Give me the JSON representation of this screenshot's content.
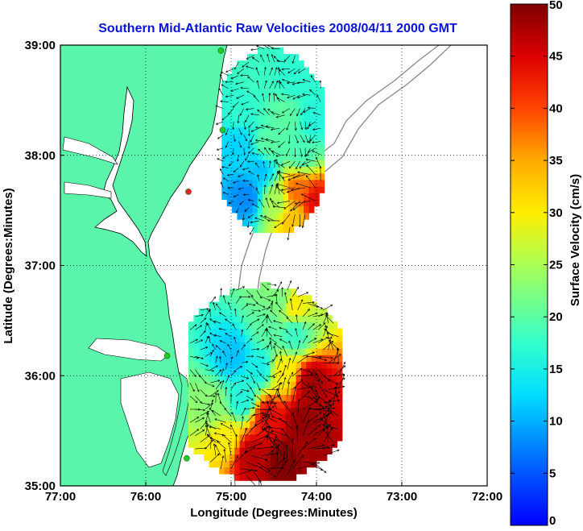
{
  "chart_data": {
    "type": "heatmap",
    "title": "Southern Mid-Atlantic Raw Velocities 2008/04/11 2000 GMT",
    "xlabel": "Longitude (Degrees:Minutes)",
    "ylabel": "Latitude (Degrees:Minutes)",
    "xlim": [
      -77,
      -72
    ],
    "ylim": [
      35,
      39
    ],
    "x_ticks": [
      {
        "value": -77,
        "label": "77:00"
      },
      {
        "value": -76,
        "label": "76:00"
      },
      {
        "value": -75,
        "label": "75:00"
      },
      {
        "value": -74,
        "label": "74:00"
      },
      {
        "value": -73,
        "label": "73:00"
      },
      {
        "value": -72,
        "label": "72:00"
      }
    ],
    "y_ticks": [
      {
        "value": 35,
        "label": "35:00"
      },
      {
        "value": 36,
        "label": "36:00"
      },
      {
        "value": 37,
        "label": "37:00"
      },
      {
        "value": 38,
        "label": "38:00"
      },
      {
        "value": 39,
        "label": "39:00"
      }
    ],
    "grid": "dotted",
    "colorbar": {
      "label": "Surface Velocity (cm/s)",
      "range": [
        0,
        50
      ],
      "ticks": [
        0,
        5,
        10,
        15,
        20,
        25,
        30,
        35,
        40,
        45,
        50
      ],
      "colormap": "jet"
    },
    "land_color": "#5af5aa",
    "regions": [
      {
        "name": "northern",
        "lon_range": [
          -75.11,
          -73.95
        ],
        "lat_range": [
          37.3,
          38.95
        ],
        "samples": [
          {
            "lon": -74.8,
            "lat": 38.7,
            "speed": 18
          },
          {
            "lon": -74.3,
            "lat": 38.65,
            "speed": 17
          },
          {
            "lon": -74.95,
            "lat": 38.4,
            "speed": 17
          },
          {
            "lon": -74.4,
            "lat": 38.35,
            "speed": 20
          },
          {
            "lon": -74.05,
            "lat": 38.3,
            "speed": 16
          },
          {
            "lon": -74.95,
            "lat": 38.05,
            "speed": 12
          },
          {
            "lon": -74.6,
            "lat": 38.05,
            "speed": 20
          },
          {
            "lon": -74.2,
            "lat": 38.0,
            "speed": 19
          },
          {
            "lon": -74.7,
            "lat": 37.85,
            "speed": 11
          },
          {
            "lon": -74.85,
            "lat": 37.6,
            "speed": 8
          },
          {
            "lon": -74.5,
            "lat": 37.55,
            "speed": 25
          },
          {
            "lon": -74.25,
            "lat": 37.65,
            "speed": 38
          },
          {
            "lon": -74.05,
            "lat": 37.55,
            "speed": 44
          },
          {
            "lon": -74.3,
            "lat": 37.4,
            "speed": 33
          }
        ]
      },
      {
        "name": "southern",
        "lon_range": [
          -75.5,
          -73.75
        ],
        "lat_range": [
          35.05,
          36.8
        ],
        "samples": [
          {
            "lon": -74.45,
            "lat": 36.65,
            "speed": 22
          },
          {
            "lon": -74.3,
            "lat": 36.6,
            "speed": 30
          },
          {
            "lon": -74.6,
            "lat": 36.4,
            "speed": 20
          },
          {
            "lon": -74.3,
            "lat": 36.35,
            "speed": 18
          },
          {
            "lon": -75.0,
            "lat": 36.15,
            "speed": 11
          },
          {
            "lon": -74.7,
            "lat": 36.05,
            "speed": 15
          },
          {
            "lon": -74.4,
            "lat": 36.0,
            "speed": 30
          },
          {
            "lon": -74.1,
            "lat": 35.9,
            "speed": 48
          },
          {
            "lon": -75.25,
            "lat": 35.7,
            "speed": 23
          },
          {
            "lon": -74.9,
            "lat": 35.75,
            "speed": 16
          },
          {
            "lon": -74.6,
            "lat": 35.6,
            "speed": 44
          },
          {
            "lon": -74.2,
            "lat": 35.55,
            "speed": 49
          },
          {
            "lon": -75.1,
            "lat": 35.4,
            "speed": 30
          },
          {
            "lon": -74.8,
            "lat": 35.25,
            "speed": 47
          },
          {
            "lon": -74.4,
            "lat": 35.2,
            "speed": 50
          },
          {
            "lon": -74.1,
            "lat": 35.3,
            "speed": 48
          }
        ]
      }
    ],
    "stations": [
      {
        "lon": -75.12,
        "lat": 38.95,
        "color": "#22cc22"
      },
      {
        "lon": -75.1,
        "lat": 38.23,
        "color": "#22cc22"
      },
      {
        "lon": -75.5,
        "lat": 37.67,
        "color": "#ee2222"
      },
      {
        "lon": -75.75,
        "lat": 36.18,
        "color": "#22cc22"
      },
      {
        "lon": -75.52,
        "lat": 35.25,
        "color": "#22cc22"
      }
    ]
  }
}
